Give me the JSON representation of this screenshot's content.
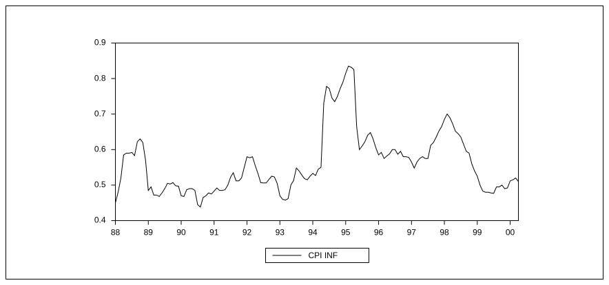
{
  "chart_data": {
    "type": "line",
    "x": [
      1988,
      1988.083,
      1988.167,
      1988.25,
      1988.333,
      1988.417,
      1988.5,
      1988.583,
      1988.667,
      1988.75,
      1988.833,
      1988.917,
      1989,
      1989.083,
      1989.167,
      1989.25,
      1989.333,
      1989.417,
      1989.5,
      1989.583,
      1989.667,
      1989.75,
      1989.833,
      1989.917,
      1990,
      1990.083,
      1990.167,
      1990.25,
      1990.333,
      1990.417,
      1990.5,
      1990.583,
      1990.667,
      1990.75,
      1990.833,
      1990.917,
      1991,
      1991.083,
      1991.167,
      1991.25,
      1991.333,
      1991.417,
      1991.5,
      1991.583,
      1991.667,
      1991.75,
      1991.833,
      1991.917,
      1992,
      1992.083,
      1992.167,
      1992.25,
      1992.333,
      1992.417,
      1992.5,
      1992.583,
      1992.667,
      1992.75,
      1992.833,
      1992.917,
      1993,
      1993.083,
      1993.167,
      1993.25,
      1993.333,
      1993.417,
      1993.5,
      1993.583,
      1993.667,
      1993.75,
      1993.833,
      1993.917,
      1994,
      1994.083,
      1994.167,
      1994.25,
      1994.333,
      1994.417,
      1994.5,
      1994.583,
      1994.667,
      1994.75,
      1994.833,
      1994.917,
      1995,
      1995.083,
      1995.167,
      1995.25,
      1995.333,
      1995.417,
      1995.5,
      1995.583,
      1995.667,
      1995.75,
      1995.833,
      1995.917,
      1996,
      1996.083,
      1996.167,
      1996.25,
      1996.333,
      1996.417,
      1996.5,
      1996.583,
      1996.667,
      1996.75,
      1996.833,
      1996.917,
      1997,
      1997.083,
      1997.167,
      1997.25,
      1997.333,
      1997.417,
      1997.5,
      1997.583,
      1997.667,
      1997.75,
      1997.833,
      1997.917,
      1998,
      1998.083,
      1998.167,
      1998.25,
      1998.333,
      1998.417,
      1998.5,
      1998.583,
      1998.667,
      1998.75,
      1998.833,
      1998.917,
      1999,
      1999.083,
      1999.167,
      1999.25,
      1999.333,
      1999.417,
      1999.5,
      1999.583,
      1999.667,
      1999.75,
      1999.833,
      1999.917,
      2000,
      2000.083,
      2000.167,
      2000.25
    ],
    "series": [
      {
        "name": "CPI INF",
        "color": "#000000",
        "values": [
          0.45,
          0.48,
          0.52,
          0.585,
          0.59,
          0.59,
          0.592,
          0.583,
          0.622,
          0.63,
          0.62,
          0.57,
          0.485,
          0.495,
          0.472,
          0.472,
          0.468,
          0.478,
          0.49,
          0.505,
          0.503,
          0.507,
          0.498,
          0.497,
          0.47,
          0.468,
          0.487,
          0.49,
          0.49,
          0.485,
          0.445,
          0.438,
          0.465,
          0.47,
          0.478,
          0.475,
          0.483,
          0.492,
          0.485,
          0.485,
          0.487,
          0.5,
          0.522,
          0.535,
          0.512,
          0.512,
          0.52,
          0.55,
          0.58,
          0.577,
          0.58,
          0.555,
          0.533,
          0.507,
          0.506,
          0.506,
          0.516,
          0.525,
          0.523,
          0.505,
          0.47,
          0.46,
          0.458,
          0.462,
          0.5,
          0.513,
          0.548,
          0.54,
          0.528,
          0.518,
          0.515,
          0.525,
          0.533,
          0.527,
          0.545,
          0.55,
          0.73,
          0.778,
          0.772,
          0.745,
          0.735,
          0.75,
          0.772,
          0.79,
          0.815,
          0.835,
          0.832,
          0.825,
          0.665,
          0.6,
          0.61,
          0.622,
          0.64,
          0.648,
          0.63,
          0.605,
          0.585,
          0.592,
          0.575,
          0.582,
          0.588,
          0.6,
          0.6,
          0.587,
          0.595,
          0.58,
          0.58,
          0.578,
          0.565,
          0.548,
          0.565,
          0.575,
          0.58,
          0.575,
          0.575,
          0.612,
          0.62,
          0.635,
          0.652,
          0.665,
          0.685,
          0.7,
          0.69,
          0.673,
          0.652,
          0.645,
          0.635,
          0.615,
          0.595,
          0.59,
          0.56,
          0.54,
          0.525,
          0.5,
          0.483,
          0.48,
          0.48,
          0.478,
          0.477,
          0.495,
          0.495,
          0.5,
          0.49,
          0.492,
          0.512,
          0.515,
          0.52,
          0.51
        ]
      }
    ],
    "xlim": [
      1988,
      2000.25
    ],
    "xticks": [
      {
        "value": 1988,
        "label": "88"
      },
      {
        "value": 1989,
        "label": "89"
      },
      {
        "value": 1990,
        "label": "90"
      },
      {
        "value": 1991,
        "label": "91"
      },
      {
        "value": 1992,
        "label": "92"
      },
      {
        "value": 1993,
        "label": "93"
      },
      {
        "value": 1994,
        "label": "94"
      },
      {
        "value": 1995,
        "label": "95"
      },
      {
        "value": 1996,
        "label": "96"
      },
      {
        "value": 1997,
        "label": "97"
      },
      {
        "value": 1998,
        "label": "98"
      },
      {
        "value": 1999,
        "label": "99"
      },
      {
        "value": 2000,
        "label": "00"
      }
    ],
    "ylim": [
      0.4,
      0.9
    ],
    "yticks": [
      0.4,
      0.5,
      0.6,
      0.7,
      0.8,
      0.9
    ],
    "grid": false,
    "legend": "bottom"
  }
}
